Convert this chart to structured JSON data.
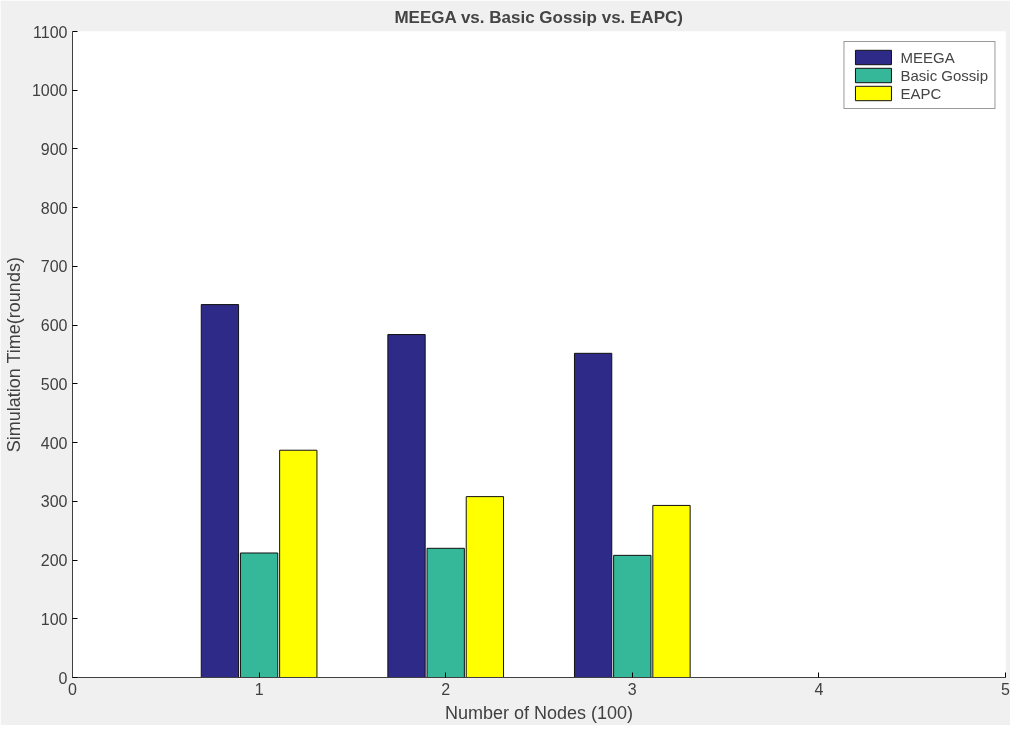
{
  "chart_data": {
    "type": "bar",
    "title": "MEEGA vs. Basic Gossip vs. EAPC)",
    "xlabel": "Number of Nodes (100)",
    "ylabel": "Simulation Time(rounds)",
    "x": [
      1,
      2,
      3
    ],
    "series": [
      {
        "name": "MEEGA",
        "color": "#2e2a87",
        "values": [
          635,
          584,
          552
        ]
      },
      {
        "name": "Basic Gossip",
        "color": "#35b89a",
        "values": [
          212,
          220,
          208
        ]
      },
      {
        "name": "EAPC",
        "color": "#ffff00",
        "values": [
          387,
          308,
          293
        ]
      }
    ],
    "xlim": [
      0,
      5
    ],
    "xticks": [
      0,
      1,
      2,
      3,
      4,
      5
    ],
    "ylim": [
      0,
      1100
    ],
    "yticks": [
      0,
      100,
      200,
      300,
      400,
      500,
      600,
      700,
      800,
      900,
      1000,
      1100
    ],
    "legend": "top right",
    "grid": false
  }
}
